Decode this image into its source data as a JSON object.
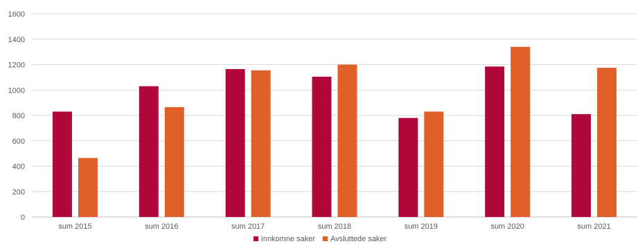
{
  "chart_data": {
    "type": "bar",
    "categories": [
      "sum 2015",
      "sum 2016",
      "sum 2017",
      "sum 2018",
      "sum 2019",
      "sum 2020",
      "sum 2021"
    ],
    "series": [
      {
        "name": "Innkomne saker",
        "values": [
          830,
          1030,
          1165,
          1105,
          780,
          1185,
          810
        ],
        "color": "#B0083A"
      },
      {
        "name": "Avsluttede saker",
        "values": [
          465,
          865,
          1155,
          1200,
          830,
          1340,
          1175
        ],
        "color": "#E0602A"
      }
    ],
    "yticks": [
      0,
      200,
      400,
      600,
      800,
      1000,
      1200,
      1400,
      1600
    ],
    "ylim": [
      0,
      1600
    ],
    "grid": true,
    "legend_position": "bottom"
  }
}
